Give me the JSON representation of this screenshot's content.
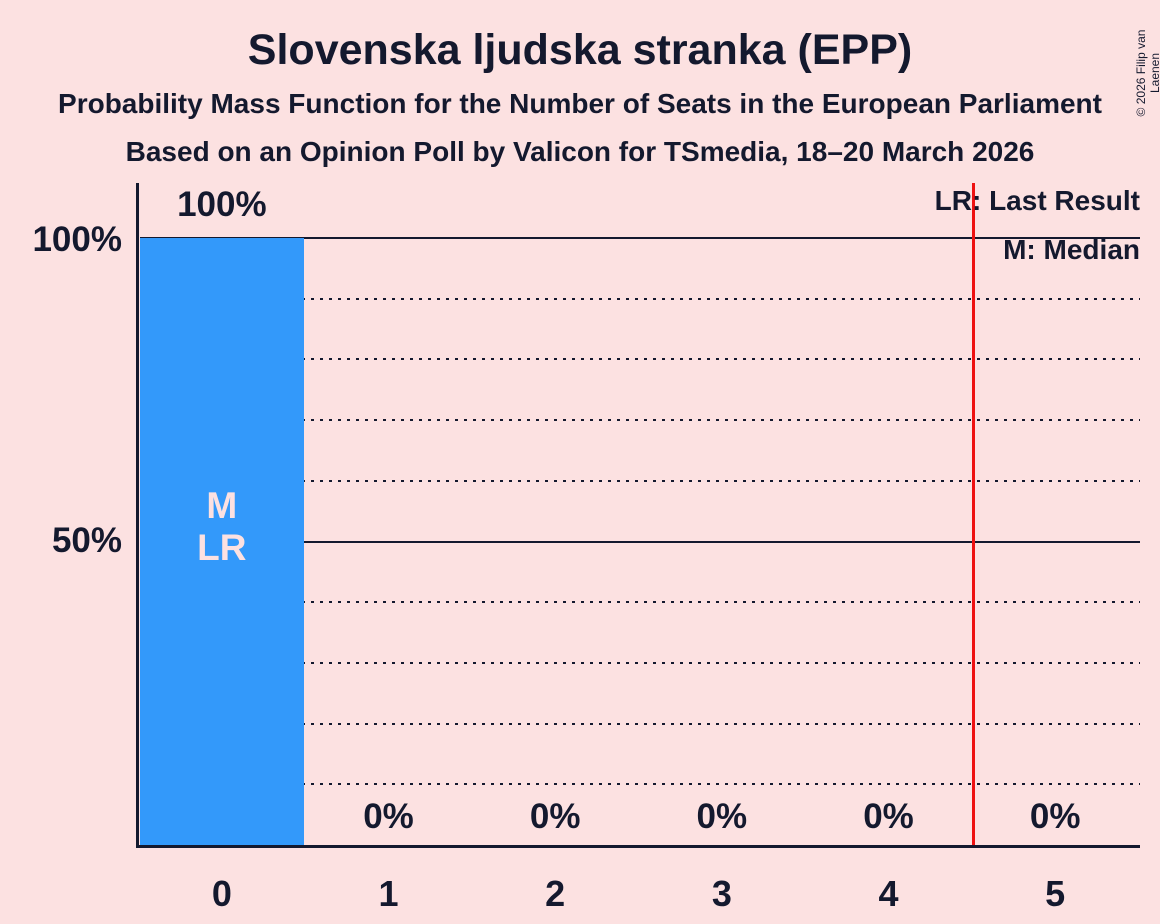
{
  "title": "Slovenska ljudska stranka (EPP)",
  "subtitle1": "Probability Mass Function for the Number of Seats in the European Parliament",
  "subtitle2": "Based on an Opinion Poll by Valicon for TSmedia, 18–20 March 2026",
  "copyright": "© 2026 Filip van Laenen",
  "legend": {
    "last_result": "LR: Last Result",
    "median": "M: Median"
  },
  "colors": {
    "background": "#fce1e1",
    "text": "#14192e",
    "bar": "#3399fa",
    "last_result_line": "#ee1111"
  },
  "chart_data": {
    "type": "bar",
    "title": "Slovenska ljudska stranka (EPP)",
    "xlabel": "Number of Seats in the European Parliament",
    "ylabel": "Probability",
    "categories": [
      "0",
      "1",
      "2",
      "3",
      "4",
      "5"
    ],
    "values": [
      100,
      0,
      0,
      0,
      0,
      0
    ],
    "value_labels": [
      "100%",
      "0%",
      "0%",
      "0%",
      "0%",
      "0%"
    ],
    "ytick_labels": [
      "100%",
      "50%"
    ],
    "ylim": [
      0,
      100
    ],
    "grid_step_percent": 10,
    "solid_grid_percents": [
      50,
      100
    ],
    "legend_position": "top-right",
    "median_seat": 0,
    "last_result_seat": 0,
    "annotated_seat": 0,
    "bar_annotations": [
      "M",
      "LR"
    ],
    "last_result_line_seats": 4.5
  }
}
